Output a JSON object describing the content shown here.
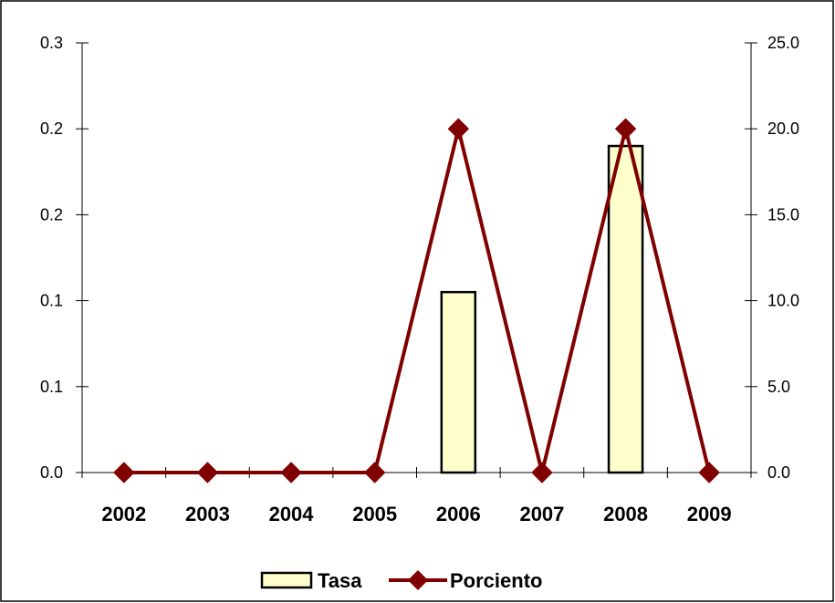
{
  "chart_data": {
    "type": "bar",
    "categories": [
      "2002",
      "2003",
      "2004",
      "2005",
      "2006",
      "2007",
      "2008",
      "2009"
    ],
    "series": [
      {
        "name": "Tasa",
        "type": "bar",
        "axis": "left",
        "values": [
          0,
          0,
          0,
          0,
          0.105,
          0,
          0.19,
          0
        ],
        "fill": "#ffffcc",
        "stroke": "#000000"
      },
      {
        "name": "Porciento",
        "type": "line",
        "axis": "right",
        "values": [
          0,
          0,
          0,
          0,
          20,
          0,
          20,
          0
        ],
        "color": "#800000"
      }
    ],
    "left_axis": {
      "range": [
        0,
        0.25
      ],
      "tick_values": [
        0,
        0.05,
        0.1,
        0.15,
        0.2,
        0.25
      ],
      "tick_labels": [
        "0.0",
        "0.1",
        "0.1",
        "0.2",
        "0.2",
        "0.3"
      ]
    },
    "right_axis": {
      "range": [
        0,
        25
      ],
      "tick_values": [
        0,
        5,
        10,
        15,
        20,
        25
      ],
      "tick_labels": [
        "0.0",
        "5.0",
        "10.0",
        "15.0",
        "20.0",
        "25.0"
      ]
    },
    "grid": false,
    "legend_position": "bottom"
  }
}
